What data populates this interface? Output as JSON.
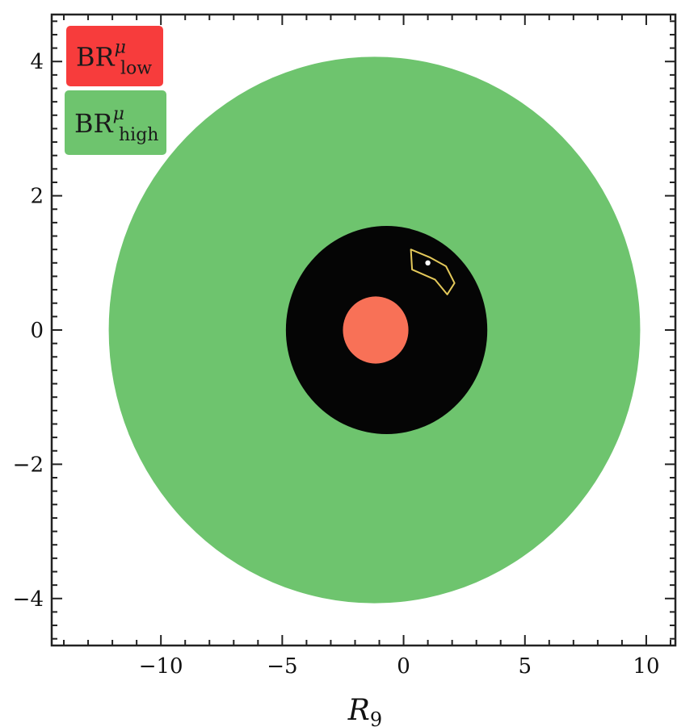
{
  "chart_data": {
    "type": "area",
    "title": "",
    "xlabel": "R",
    "xlabel_subscript": "9",
    "ylabel": "",
    "xlim": [
      -14.5,
      11.2
    ],
    "ylim": [
      -4.7,
      4.7
    ],
    "x_ticks": [
      -10,
      -5,
      0,
      5,
      10
    ],
    "x_tick_labels": [
      "−10",
      "−5",
      "0",
      "5",
      "10"
    ],
    "y_ticks": [
      -4,
      -2,
      0,
      2,
      4
    ],
    "y_tick_labels": [
      "−4",
      "−2",
      "0",
      "2",
      "4"
    ],
    "grid": false,
    "legend_position": "top-left",
    "legend": [
      {
        "base": "BR",
        "sup": "μ",
        "sub": "low",
        "color": "#f73c3c"
      },
      {
        "base": "BR",
        "sup": "μ",
        "sub": "high",
        "color": "#6ec46e"
      }
    ],
    "regions": [
      {
        "series": "high",
        "shape": "ellipse",
        "color": "#6ec46e",
        "cx": -1.2,
        "cy": 0.0,
        "rx": 10.95,
        "ry": 4.07
      },
      {
        "series": "overlap",
        "shape": "ellipse",
        "color": "#050505",
        "cx": -0.7,
        "cy": 0.0,
        "rx": 4.15,
        "ry": 1.55
      },
      {
        "series": "low",
        "shape": "ellipse",
        "color": "#f87157",
        "cx": -1.15,
        "cy": 0.0,
        "rx": 1.35,
        "ry": 0.5
      }
    ],
    "outline_region": {
      "color": "#e3c85a",
      "points": [
        [
          0.3,
          1.2
        ],
        [
          1.1,
          1.08
        ],
        [
          1.75,
          0.95
        ],
        [
          2.1,
          0.7
        ],
        [
          1.8,
          0.53
        ],
        [
          1.3,
          0.75
        ],
        [
          0.35,
          0.9
        ]
      ]
    },
    "best_fit_point": {
      "x": 1.0,
      "y": 1.0,
      "color": "#ffffff"
    }
  }
}
